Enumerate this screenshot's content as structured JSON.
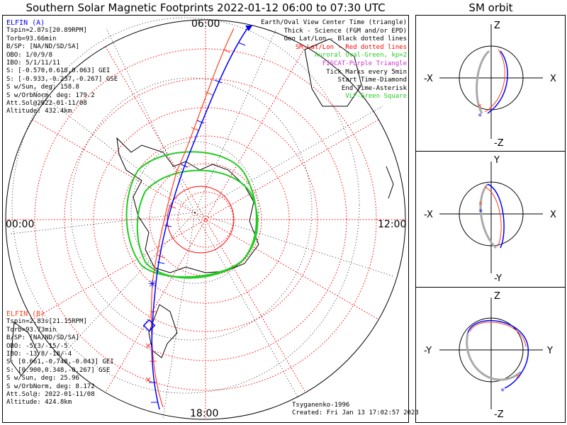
{
  "title": "Southern Solar Magnetic Footprints 2022-01-12 06:00 to 07:30 UTC",
  "sm_orbit_title": "SM orbit",
  "mlt_labels": {
    "top": "06:00",
    "left": "00:00",
    "right": "12:00",
    "bottom": "18:00"
  },
  "elfin_a": {
    "name": "ELFIN (A)",
    "color": "#0000ff",
    "lines": [
      "Tspin=2.87s[20.89RPM]",
      "Torb=93.66min",
      "B/SP: [NA/ND/SD/SA]",
      "OBO: 1/0/9/8",
      "IBO: 5/1/11/11",
      "S: [-0.570,0.618,0.063] GEI",
      "S: [-0.933,-0.237,-0.267] GSE",
      "S w/Sun, deg: 158.8",
      "S w/OrbNorm, deg: 179.2",
      "Att.Sol@2022-01-11/08",
      "Altitude: 432.4km"
    ]
  },
  "elfin_b": {
    "name": "ELFIN (B)",
    "color": "#ff4020",
    "lines": [
      "Tspin=2.83s[21.15RPM]",
      "Torb=93.73min",
      "B/SP: [NA/ND/SD/SA]",
      "OBO: -5/3/-15/-5",
      "IBO: -13/8/-18/-4",
      "S: [0.661,-0.748,-0.043] GEI",
      "S: [0.900,0.348,-0.267] GSE",
      "S w/Sun, deg: 25.96",
      "S w/OrbNorm, deg: 8.172",
      "Att.Sol@: 2022-01-11/08",
      "Altitude: 424.8km"
    ]
  },
  "legend": [
    {
      "text": "Earth/Oval View Center Time (triangle)",
      "color": "#000000"
    },
    {
      "text": "Thick - Science (FGM and/or EPD)",
      "color": "#000000"
    },
    {
      "text": "Geo Lat/Lon - Black dotted lines",
      "color": "#000000"
    },
    {
      "text": "SM Lat/Lon - Red dotted lines",
      "color": "#ff0000"
    },
    {
      "text": "Auroral Oval-Green, kp=2",
      "color": "#22cc22"
    },
    {
      "text": "FISCAT-Purple Triangle",
      "color": "#cc33cc"
    },
    {
      "text": "Tick Marks every 5min",
      "color": "#000000"
    },
    {
      "text": "Start Time-Diamond",
      "color": "#000000"
    },
    {
      "text": "End Time-Asterisk",
      "color": "#000000"
    },
    {
      "text": "VLF-Green Square",
      "color": "#22cc22"
    }
  ],
  "credits": [
    "Tsyganenko-1996",
    "Created: Fri Jan 13 17:02:57 2023"
  ],
  "sm_panels": [
    {
      "top": "Z",
      "bottom": "-Z",
      "left": "-X",
      "right": "X"
    },
    {
      "top": "Y",
      "bottom": "-Y",
      "left": "-X",
      "right": "X"
    },
    {
      "top": "Z",
      "bottom": "-Z",
      "left": "-Y",
      "right": "Y"
    }
  ],
  "colors": {
    "oval": "#22cc22",
    "sm_grid": "#ff0000",
    "geo_grid": "#000000",
    "trace_a": "#0000ff",
    "trace_b": "#ff4020",
    "shadow": "#aaaaaa"
  }
}
